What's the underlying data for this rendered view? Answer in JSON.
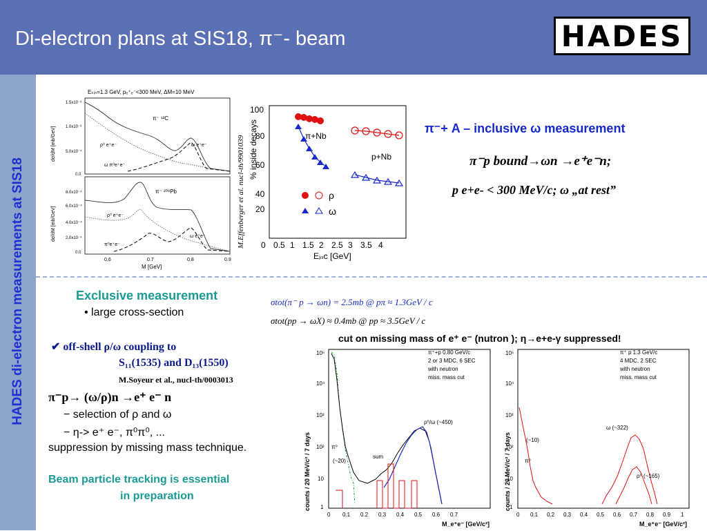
{
  "header": {
    "title": "Di-electron plans at SIS18, π⁻- beam",
    "logo": "HADES"
  },
  "sidebar": {
    "label": "HADES di-electron measurements at SIS18"
  },
  "fig1": {
    "heading": "E",
    "heading_full": "Eₖᵢₙ=1.3 GeV, pₑ⁺ₑ⁻<300 MeV, ΔM=10 MeV",
    "top_yticks": [
      "1.5x10⁻³",
      "1.0x10⁻³",
      "5.0x10⁻⁴",
      "0.0"
    ],
    "bot_yticks": [
      "8.0x10⁻⁴",
      "6.0x10⁻⁴",
      "4.0x10⁻⁴",
      "2.0x10⁻⁴",
      "0.0"
    ],
    "xticks": [
      "0.6",
      "0.7",
      "0.8",
      "0.9"
    ],
    "ylabel": "dσ/dM [mb/GeV]",
    "xlabel": "M [GeV]",
    "top_target": "π⁻ ¹²C",
    "bot_target": "π⁻ ²⁰⁸Pb",
    "label_rho": "ρ⁰ e⁺e⁻",
    "label_rho2": "π⁰e⁺e⁻",
    "label_omega": "ω  e⁺e⁻",
    "label_omega2": "ω π⁰e⁺e⁻",
    "bot_rho": "ρ⁰  e⁺e⁻",
    "bot_pi0": "π⁰e⁺e⁻",
    "bot_omega": "ω   e⁺e⁻",
    "side_ref": "M.Effenberger et al. nucl-th/9901039"
  },
  "fig2": {
    "ylabel": "% inside decays",
    "xlabel": "Eᵢₙc [GeV]",
    "yticks": [
      "100",
      "80",
      "60",
      "40",
      "20"
    ],
    "xticks": [
      "0",
      "0.5",
      "1",
      "1.5",
      "2",
      "2.5",
      "3",
      "3.5",
      "4"
    ],
    "label_pinb": "π+Nb",
    "label_pnb": "p+Nb",
    "legend_rho": "ρ",
    "legend_omega": "ω"
  },
  "right_top": {
    "heading": "π⁻+ A – inclusive ω measurement",
    "reaction": "π⁻p bound→ωn →e⁺e⁻n;",
    "cuts": "p e+e- < 300 MeV/c;   ω „at rest”"
  },
  "exclusive": {
    "heading": "Exclusive measurement",
    "bullet": "• large cross-section",
    "formula1": "σtot(π⁻ p → ωn) = 2.5mb        @ pπ ≈ 1.3GeV / c",
    "formula2": "σtot(pp → ωX) ≈ 0.4mb        @ pp ≈ 3.5GeV / c",
    "cut_line": "cut on missing mass of e⁺ e⁻ (nutron ); η→e+e-γ   suppressed!",
    "offshell": "✔ off-shell ρ/ω coupling to",
    "s11": "S₁₁(1535) and D₁₃(1550)",
    "soyeur": "M.Soyeur et al., nucl-th/0003013",
    "reaction2": "π⁻p→ (ω/ρ)n →e⁺ e⁻ n",
    "sel1": "− selection  of ρ and ω",
    "sel2": "− η-> e⁺ e⁻, π⁰π⁰, ...",
    "suppression": "suppression  by missing mass technique.",
    "beam1": "Beam particle tracking is essential",
    "beam2": "in preparation"
  },
  "hist_left": {
    "info": [
      "π⁺+p   0.80 GeV/c",
      "2 or 3 MDC, 6 SEC",
      "with neutron",
      "miss. mass cut"
    ],
    "ylabel": "counts  /  20 MeV/c²  /  7 days",
    "xlabel": "M_e⁺e⁻ [GeV/c²]",
    "peak_label": "ρ⁰/ω (~450)",
    "low_label": "(~20)",
    "sum_label": "sum",
    "pi_label": "π⁰",
    "xticks": [
      "0",
      "0.1",
      "0.2",
      "0.3",
      "0.4",
      "0.5",
      "0.6",
      "0.7"
    ],
    "yticks": [
      "1",
      "10",
      "10²",
      "10³",
      "10⁴",
      "10⁵"
    ]
  },
  "hist_right": {
    "info": [
      "π⁺ p       1.3 GeV/c",
      "4 MDC, 2 SEC",
      "with neutron",
      "miss. mass cut"
    ],
    "ylabel": "counts  /  20 MeV/c²  /  7 days",
    "xlabel": "M_e⁺e⁻ [GeV/c²]",
    "omega_label": "ω (~322)",
    "rho_label": "ρ⁰ (~165)",
    "low_label": "(~10)",
    "pi_label": "π⁰",
    "xticks": [
      "0",
      "0.1",
      "0.2",
      "0.3",
      "0.4",
      "0.5",
      "0.6",
      "0.7",
      "0.8",
      "0.9",
      "1"
    ],
    "yticks": [
      "1",
      "10",
      "10²",
      "10³",
      "10⁴",
      "10⁵"
    ]
  }
}
